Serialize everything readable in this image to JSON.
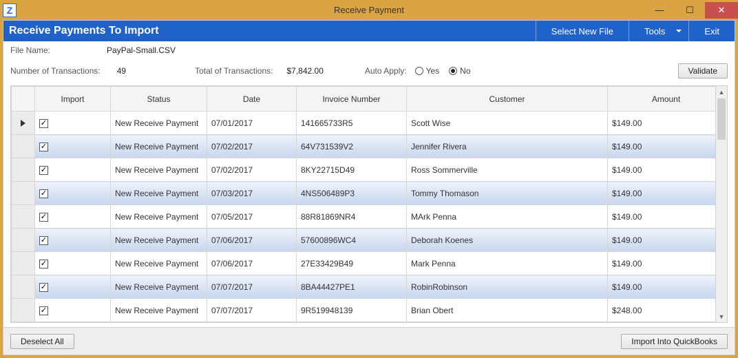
{
  "window": {
    "title": "Receive Payment",
    "app_icon_letter": "Z"
  },
  "header": {
    "heading": "Receive Payments To Import",
    "select_new_file": "Select New File",
    "tools": "Tools",
    "exit": "Exit"
  },
  "info": {
    "file_name_label": "File Name:",
    "file_name": "PayPal-Small.CSV",
    "num_tx_label": "Number of Transactions:",
    "num_tx": "49",
    "total_tx_label": "Total of Transactions:",
    "total_tx": "$7,842.00",
    "auto_apply_label": "Auto Apply:",
    "yes": "Yes",
    "no": "No",
    "auto_apply_selected": "No",
    "validate": "Validate"
  },
  "grid": {
    "columns": {
      "import": "Import",
      "status": "Status",
      "date": "Date",
      "invoice": "Invoice Number",
      "customer": "Customer",
      "amount": "Amount"
    },
    "rows": [
      {
        "checked": true,
        "status": "New Receive Payment",
        "date": "07/01/2017",
        "invoice": "141665733R5",
        "customer": "Scott Wise",
        "amount": "$149.00",
        "current": true
      },
      {
        "checked": true,
        "status": "New Receive Payment",
        "date": "07/02/2017",
        "invoice": "64V731539V2",
        "customer": "Jennifer Rivera",
        "amount": "$149.00",
        "alt": true
      },
      {
        "checked": true,
        "status": "New Receive Payment",
        "date": "07/02/2017",
        "invoice": "8KY22715D49",
        "customer": "Ross Sommerville",
        "amount": "$149.00"
      },
      {
        "checked": true,
        "status": "New Receive Payment",
        "date": "07/03/2017",
        "invoice": "4NS506489P3",
        "customer": "Tommy Thomason",
        "amount": "$149.00",
        "alt": true
      },
      {
        "checked": true,
        "status": "New Receive Payment",
        "date": "07/05/2017",
        "invoice": "88R81869NR4",
        "customer": "MArk Penna",
        "amount": "$149.00"
      },
      {
        "checked": true,
        "status": "New Receive Payment",
        "date": "07/06/2017",
        "invoice": "57600896WC4",
        "customer": "Deborah Koenes",
        "amount": "$149.00",
        "alt": true
      },
      {
        "checked": true,
        "status": "New Receive Payment",
        "date": "07/06/2017",
        "invoice": "27E33429B49",
        "customer": "Mark Penna",
        "amount": "$149.00"
      },
      {
        "checked": true,
        "status": "New Receive Payment",
        "date": "07/07/2017",
        "invoice": "8BA44427PE1",
        "customer": "RobinRobinson",
        "amount": "$149.00",
        "alt": true
      },
      {
        "checked": true,
        "status": "New Receive Payment",
        "date": "07/07/2017",
        "invoice": "9R519948139",
        "customer": "Brian Obert",
        "amount": "$248.00"
      }
    ]
  },
  "footer": {
    "deselect_all": "Deselect All",
    "import_qb": "Import Into QuickBooks"
  },
  "colors": {
    "chrome": "#d9a441",
    "blue_bar": "#1f62c9",
    "close_btn": "#c8504f",
    "alt_row_top": "#eef3fb",
    "alt_row_bottom": "#c7d6ee"
  }
}
